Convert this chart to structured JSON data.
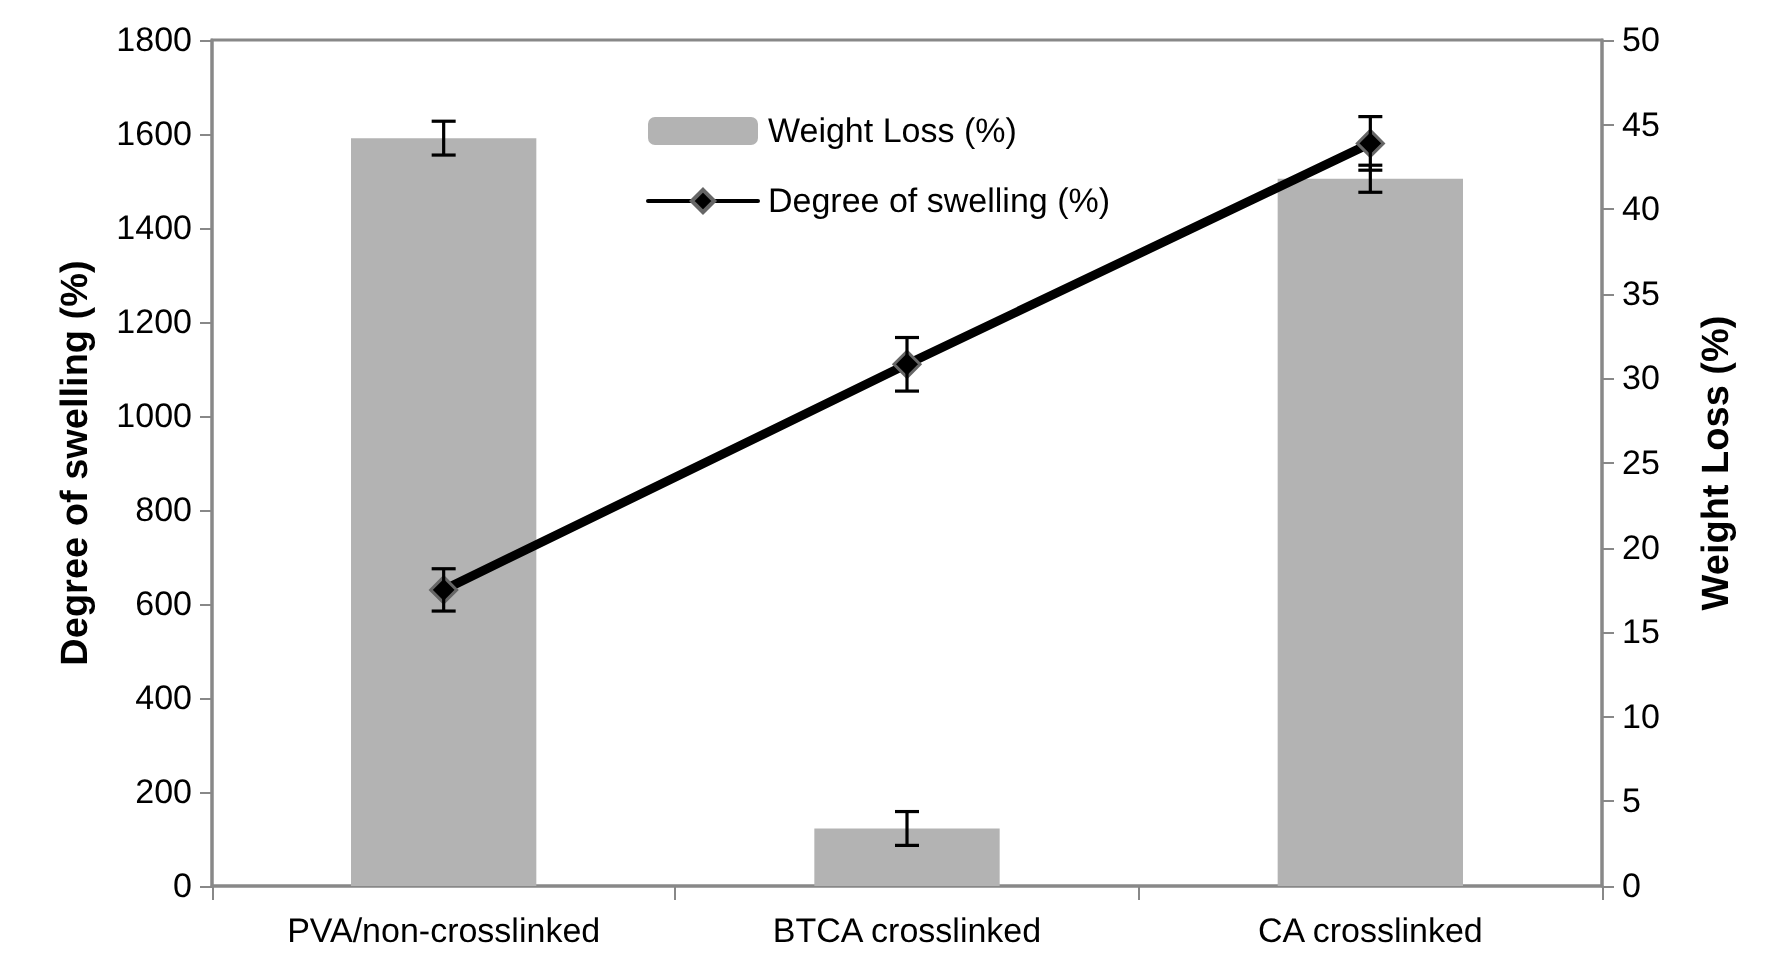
{
  "chart_data": {
    "type": "bar",
    "categories": [
      "PVA/non-crosslinked",
      "BTCA crosslinked",
      "CA crosslinked"
    ],
    "series": [
      {
        "name": "Weight Loss (%)",
        "axis": "y2",
        "color": "#b3b3b3",
        "values": [
          44.2,
          3.4,
          41.8
        ],
        "errors": [
          1.0,
          1.0,
          0.8
        ]
      },
      {
        "name": "Degree of swelling (%)",
        "type": "line",
        "color": "#000000",
        "values": [
          630,
          1110,
          1580
        ],
        "errors": [
          45,
          57,
          57
        ]
      }
    ],
    "ylabel": "Degree of swelling (%)",
    "y2label": "Weight Loss (%)",
    "ylim": [
      0,
      1800
    ],
    "yticks": [
      0,
      200,
      400,
      600,
      800,
      1000,
      1200,
      1400,
      1600,
      1800
    ],
    "y2lim": [
      0,
      50
    ],
    "y2ticks": [
      0,
      5,
      10,
      15,
      20,
      25,
      30,
      35,
      40,
      45,
      50
    ],
    "legend": "top",
    "grid": false,
    "marker": "diamond",
    "line_style": "solid"
  }
}
